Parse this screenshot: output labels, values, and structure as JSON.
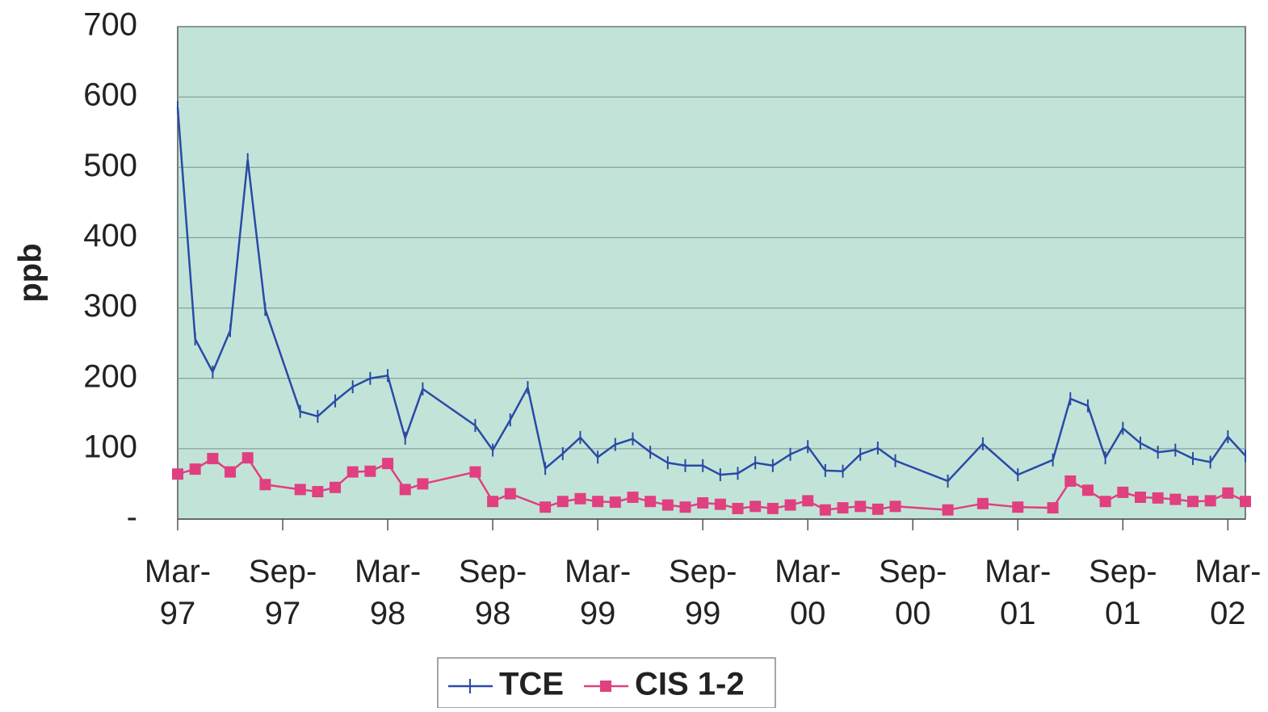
{
  "chart_data": {
    "type": "line",
    "ylabel": "ppb",
    "xlim": [
      "1997-03",
      "2002-04"
    ],
    "xticks": [
      {
        "value": "1997-03",
        "label": "Mar-97"
      },
      {
        "value": "1997-09",
        "label": "Sep-97"
      },
      {
        "value": "1998-03",
        "label": "Mar-98"
      },
      {
        "value": "1998-09",
        "label": "Sep-98"
      },
      {
        "value": "1999-03",
        "label": "Mar-99"
      },
      {
        "value": "1999-09",
        "label": "Sep-99"
      },
      {
        "value": "2000-03",
        "label": "Mar-00"
      },
      {
        "value": "2000-09",
        "label": "Sep-00"
      },
      {
        "value": "2001-03",
        "label": "Mar-01"
      },
      {
        "value": "2001-09",
        "label": "Sep-01"
      },
      {
        "value": "2002-03",
        "label": "Mar-02"
      }
    ],
    "ylim": [
      0,
      700
    ],
    "yticks": [
      {
        "value": 0,
        "label": "-"
      },
      100,
      200,
      300,
      400,
      500,
      600,
      700
    ],
    "grid": true,
    "legend": "bottom",
    "series": [
      {
        "name": "TCE",
        "color": "#2a4aa6",
        "marker": "plus",
        "x": [
          "1997-03",
          "1997-04",
          "1997-05",
          "1997-06",
          "1997-07",
          "1997-08",
          "1997-10",
          "1997-11",
          "1997-12",
          "1998-01",
          "1998-02",
          "1998-03",
          "1998-04",
          "1998-05",
          "1998-08",
          "1998-09",
          "1998-10",
          "1998-11",
          "1998-12",
          "1999-01",
          "1999-02",
          "1999-03",
          "1999-04",
          "1999-05",
          "1999-06",
          "1999-07",
          "1999-08",
          "1999-09",
          "1999-10",
          "1999-11",
          "1999-12",
          "2000-01",
          "2000-02",
          "2000-03",
          "2000-04",
          "2000-05",
          "2000-06",
          "2000-07",
          "2000-08",
          "2000-11",
          "2001-01",
          "2001-03",
          "2001-05",
          "2001-06",
          "2001-07",
          "2001-08",
          "2001-09",
          "2001-10",
          "2001-11",
          "2001-12",
          "2002-01",
          "2002-02",
          "2002-03",
          "2002-04"
        ],
        "values": [
          585,
          256,
          209,
          268,
          511,
          298,
          153,
          146,
          168,
          188,
          200,
          204,
          115,
          185,
          133,
          98,
          141,
          187,
          72,
          93,
          116,
          88,
          106,
          114,
          95,
          80,
          76,
          76,
          63,
          65,
          80,
          76,
          92,
          103,
          69,
          68,
          92,
          101,
          83,
          54,
          107,
          63,
          84,
          171,
          161,
          87,
          129,
          108,
          95,
          98,
          86,
          81,
          117,
          90
        ]
      },
      {
        "name": "CIS 1-2",
        "color": "#e0407f",
        "marker": "square",
        "x": [
          "1997-03",
          "1997-04",
          "1997-05",
          "1997-06",
          "1997-07",
          "1997-08",
          "1997-10",
          "1997-11",
          "1997-12",
          "1998-01",
          "1998-02",
          "1998-03",
          "1998-04",
          "1998-05",
          "1998-08",
          "1998-09",
          "1998-10",
          "1998-12",
          "1999-01",
          "1999-02",
          "1999-03",
          "1999-04",
          "1999-05",
          "1999-06",
          "1999-07",
          "1999-08",
          "1999-09",
          "1999-10",
          "1999-11",
          "1999-12",
          "2000-01",
          "2000-02",
          "2000-03",
          "2000-04",
          "2000-05",
          "2000-06",
          "2000-07",
          "2000-08",
          "2000-11",
          "2001-01",
          "2001-03",
          "2001-05",
          "2001-06",
          "2001-07",
          "2001-08",
          "2001-09",
          "2001-10",
          "2001-11",
          "2001-12",
          "2002-01",
          "2002-02",
          "2002-03",
          "2002-04"
        ],
        "values": [
          64,
          71,
          86,
          67,
          87,
          49,
          42,
          39,
          45,
          67,
          68,
          79,
          42,
          50,
          67,
          25,
          36,
          17,
          25,
          29,
          25,
          24,
          31,
          25,
          20,
          17,
          23,
          21,
          15,
          18,
          15,
          20,
          26,
          13,
          16,
          18,
          14,
          18,
          13,
          22,
          17,
          16,
          54,
          41,
          25,
          38,
          31,
          30,
          28,
          25,
          26,
          37,
          25
        ]
      }
    ]
  }
}
